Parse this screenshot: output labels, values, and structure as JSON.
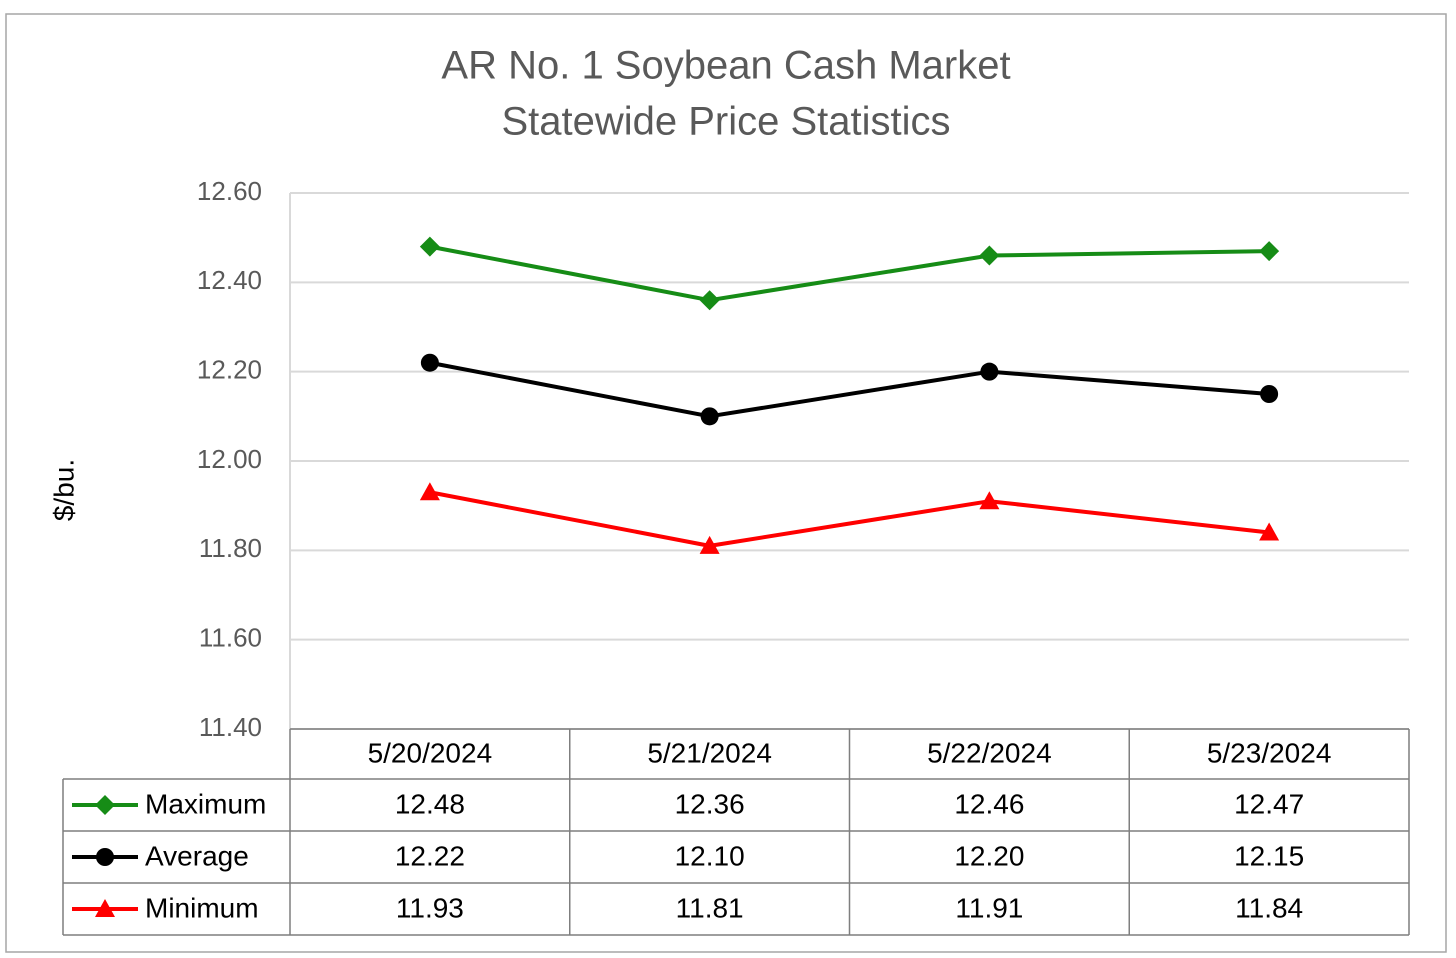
{
  "chart_data": {
    "type": "line",
    "title": "AR No. 1 Soybean Cash Market",
    "subtitle": "Statewide Price Statistics",
    "y_label": "$/bu.",
    "categories": [
      "5/20/2024",
      "5/21/2024",
      "5/22/2024",
      "5/23/2024"
    ],
    "series": [
      {
        "name": "Maximum",
        "color": "#168c16",
        "marker": "diamond",
        "values": [
          12.48,
          12.36,
          12.46,
          12.47
        ],
        "value_labels": [
          "12.48",
          "12.36",
          "12.46",
          "12.47"
        ]
      },
      {
        "name": "Average",
        "color": "#000000",
        "marker": "circle",
        "values": [
          12.22,
          12.1,
          12.2,
          12.15
        ],
        "value_labels": [
          "12.22",
          "12.10",
          "12.20",
          "12.15"
        ]
      },
      {
        "name": "Minimum",
        "color": "#ff0000",
        "marker": "triangle",
        "values": [
          11.93,
          11.81,
          11.91,
          11.84
        ],
        "value_labels": [
          "11.93",
          "11.81",
          "11.91",
          "11.84"
        ]
      }
    ],
    "ylim": [
      11.4,
      12.6
    ],
    "yticks": [
      {
        "value": 11.4,
        "label": "11.40"
      },
      {
        "value": 11.6,
        "label": "11.60"
      },
      {
        "value": 11.8,
        "label": "11.80"
      },
      {
        "value": 12.0,
        "label": "12.00"
      },
      {
        "value": 12.2,
        "label": "12.20"
      },
      {
        "value": 12.4,
        "label": "12.40"
      },
      {
        "value": 12.6,
        "label": "12.60"
      }
    ],
    "grid": true,
    "data_table": true
  }
}
